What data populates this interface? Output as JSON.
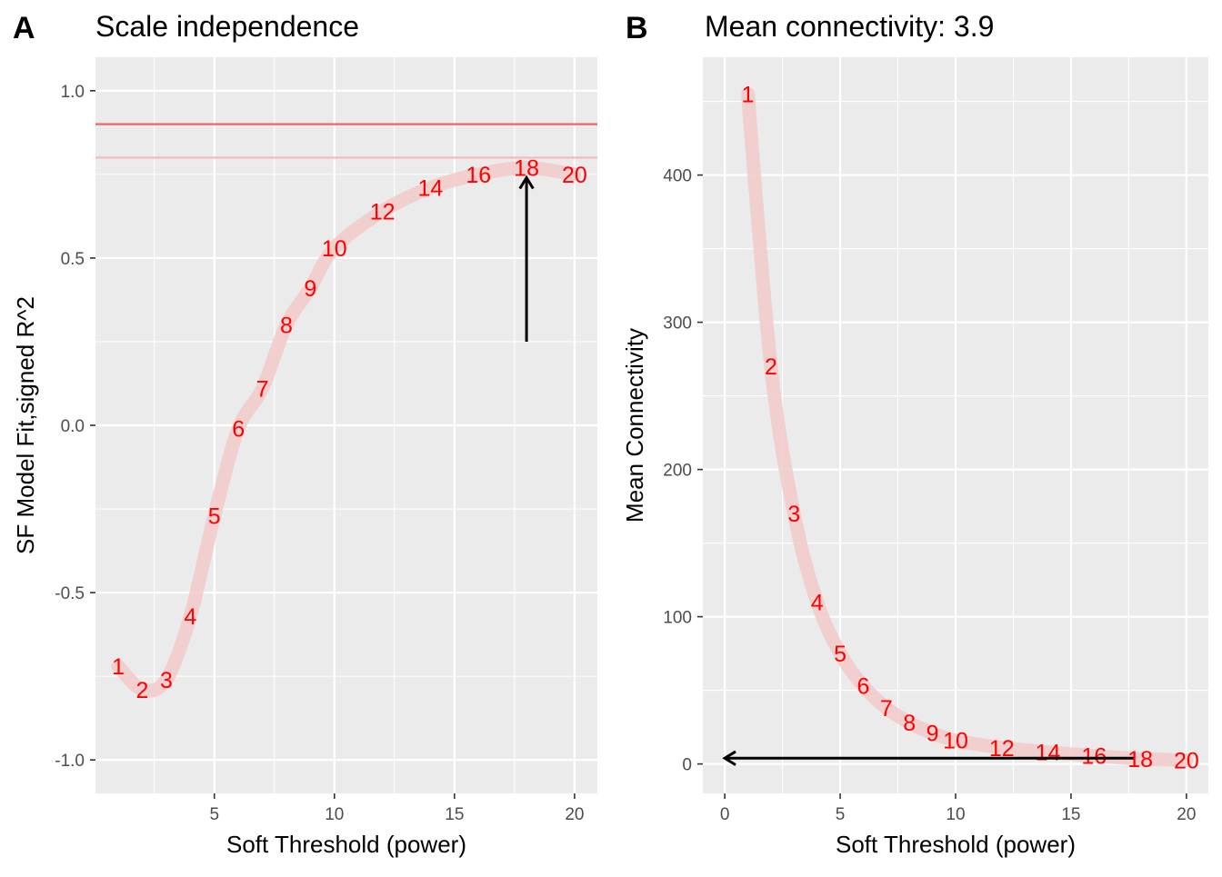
{
  "chart_data": [
    {
      "tag": "A",
      "type": "line",
      "title": "Scale independence",
      "xlabel": "Soft Threshold (power)",
      "ylabel": "SF Model Fit,signed R^2",
      "xlim": [
        0.05,
        20.95
      ],
      "ylim": [
        -1.1,
        1.1
      ],
      "xticks": [
        5,
        10,
        15,
        20
      ],
      "xtick_labels": [
        "5",
        "10",
        "15",
        "20"
      ],
      "yticks": [
        -1.0,
        -0.5,
        0.0,
        0.5,
        1.0
      ],
      "ytick_labels": [
        "-1.0",
        "-0.5",
        "0.0",
        "0.5",
        "1.0"
      ],
      "series": [
        {
          "name": "signed R^2",
          "x": [
            1,
            2,
            3,
            4,
            5,
            6,
            7,
            8,
            9,
            10,
            12,
            14,
            16,
            18,
            20
          ],
          "labels": [
            "1",
            "2",
            "3",
            "4",
            "5",
            "6",
            "7",
            "8",
            "9",
            "10",
            "12",
            "14",
            "16",
            "18",
            "20"
          ],
          "y": [
            -0.72,
            -0.79,
            -0.76,
            -0.57,
            -0.27,
            -0.01,
            0.11,
            0.3,
            0.41,
            0.53,
            0.64,
            0.71,
            0.75,
            0.77,
            0.75
          ]
        }
      ],
      "hlines": [
        {
          "y": 0.9,
          "color": "#ee6666"
        },
        {
          "y": 0.8,
          "color": "#f4b8b8"
        }
      ],
      "arrow": {
        "x": 18,
        "y_from": 0.25,
        "y_to": 0.74
      }
    },
    {
      "tag": "B",
      "type": "line",
      "title": "Mean connectivity: 3.9",
      "xlabel": "Soft Threshold (power)",
      "ylabel": "Mean Connectivity",
      "xlim": [
        -0.95,
        20.95
      ],
      "ylim": [
        -20,
        480
      ],
      "xticks": [
        0,
        5,
        10,
        15,
        20
      ],
      "xtick_labels": [
        "0",
        "5",
        "10",
        "15",
        "20"
      ],
      "yticks": [
        0,
        100,
        200,
        300,
        400
      ],
      "ytick_labels": [
        "0",
        "100",
        "200",
        "300",
        "400"
      ],
      "series": [
        {
          "name": "mean connectivity",
          "x": [
            1,
            2,
            3,
            4,
            5,
            6,
            7,
            8,
            9,
            10,
            12,
            14,
            16,
            18,
            20
          ],
          "labels": [
            "1",
            "2",
            "3",
            "4",
            "5",
            "6",
            "7",
            "8",
            "9",
            "10",
            "12",
            "14",
            "16",
            "18",
            "20"
          ],
          "y": [
            455,
            270,
            170,
            110,
            75,
            53,
            38,
            28,
            21,
            16,
            11,
            8,
            5.5,
            3.5,
            2.5
          ]
        }
      ],
      "arrow": {
        "y": 3.9,
        "x_from": 17.7,
        "x_to": 0
      }
    }
  ],
  "colors": {
    "panel_bg": "#ebebeb",
    "grid": "#ffffff",
    "line": "#f2cccc",
    "point_label": "#ff0000",
    "arrow": "#000000"
  }
}
